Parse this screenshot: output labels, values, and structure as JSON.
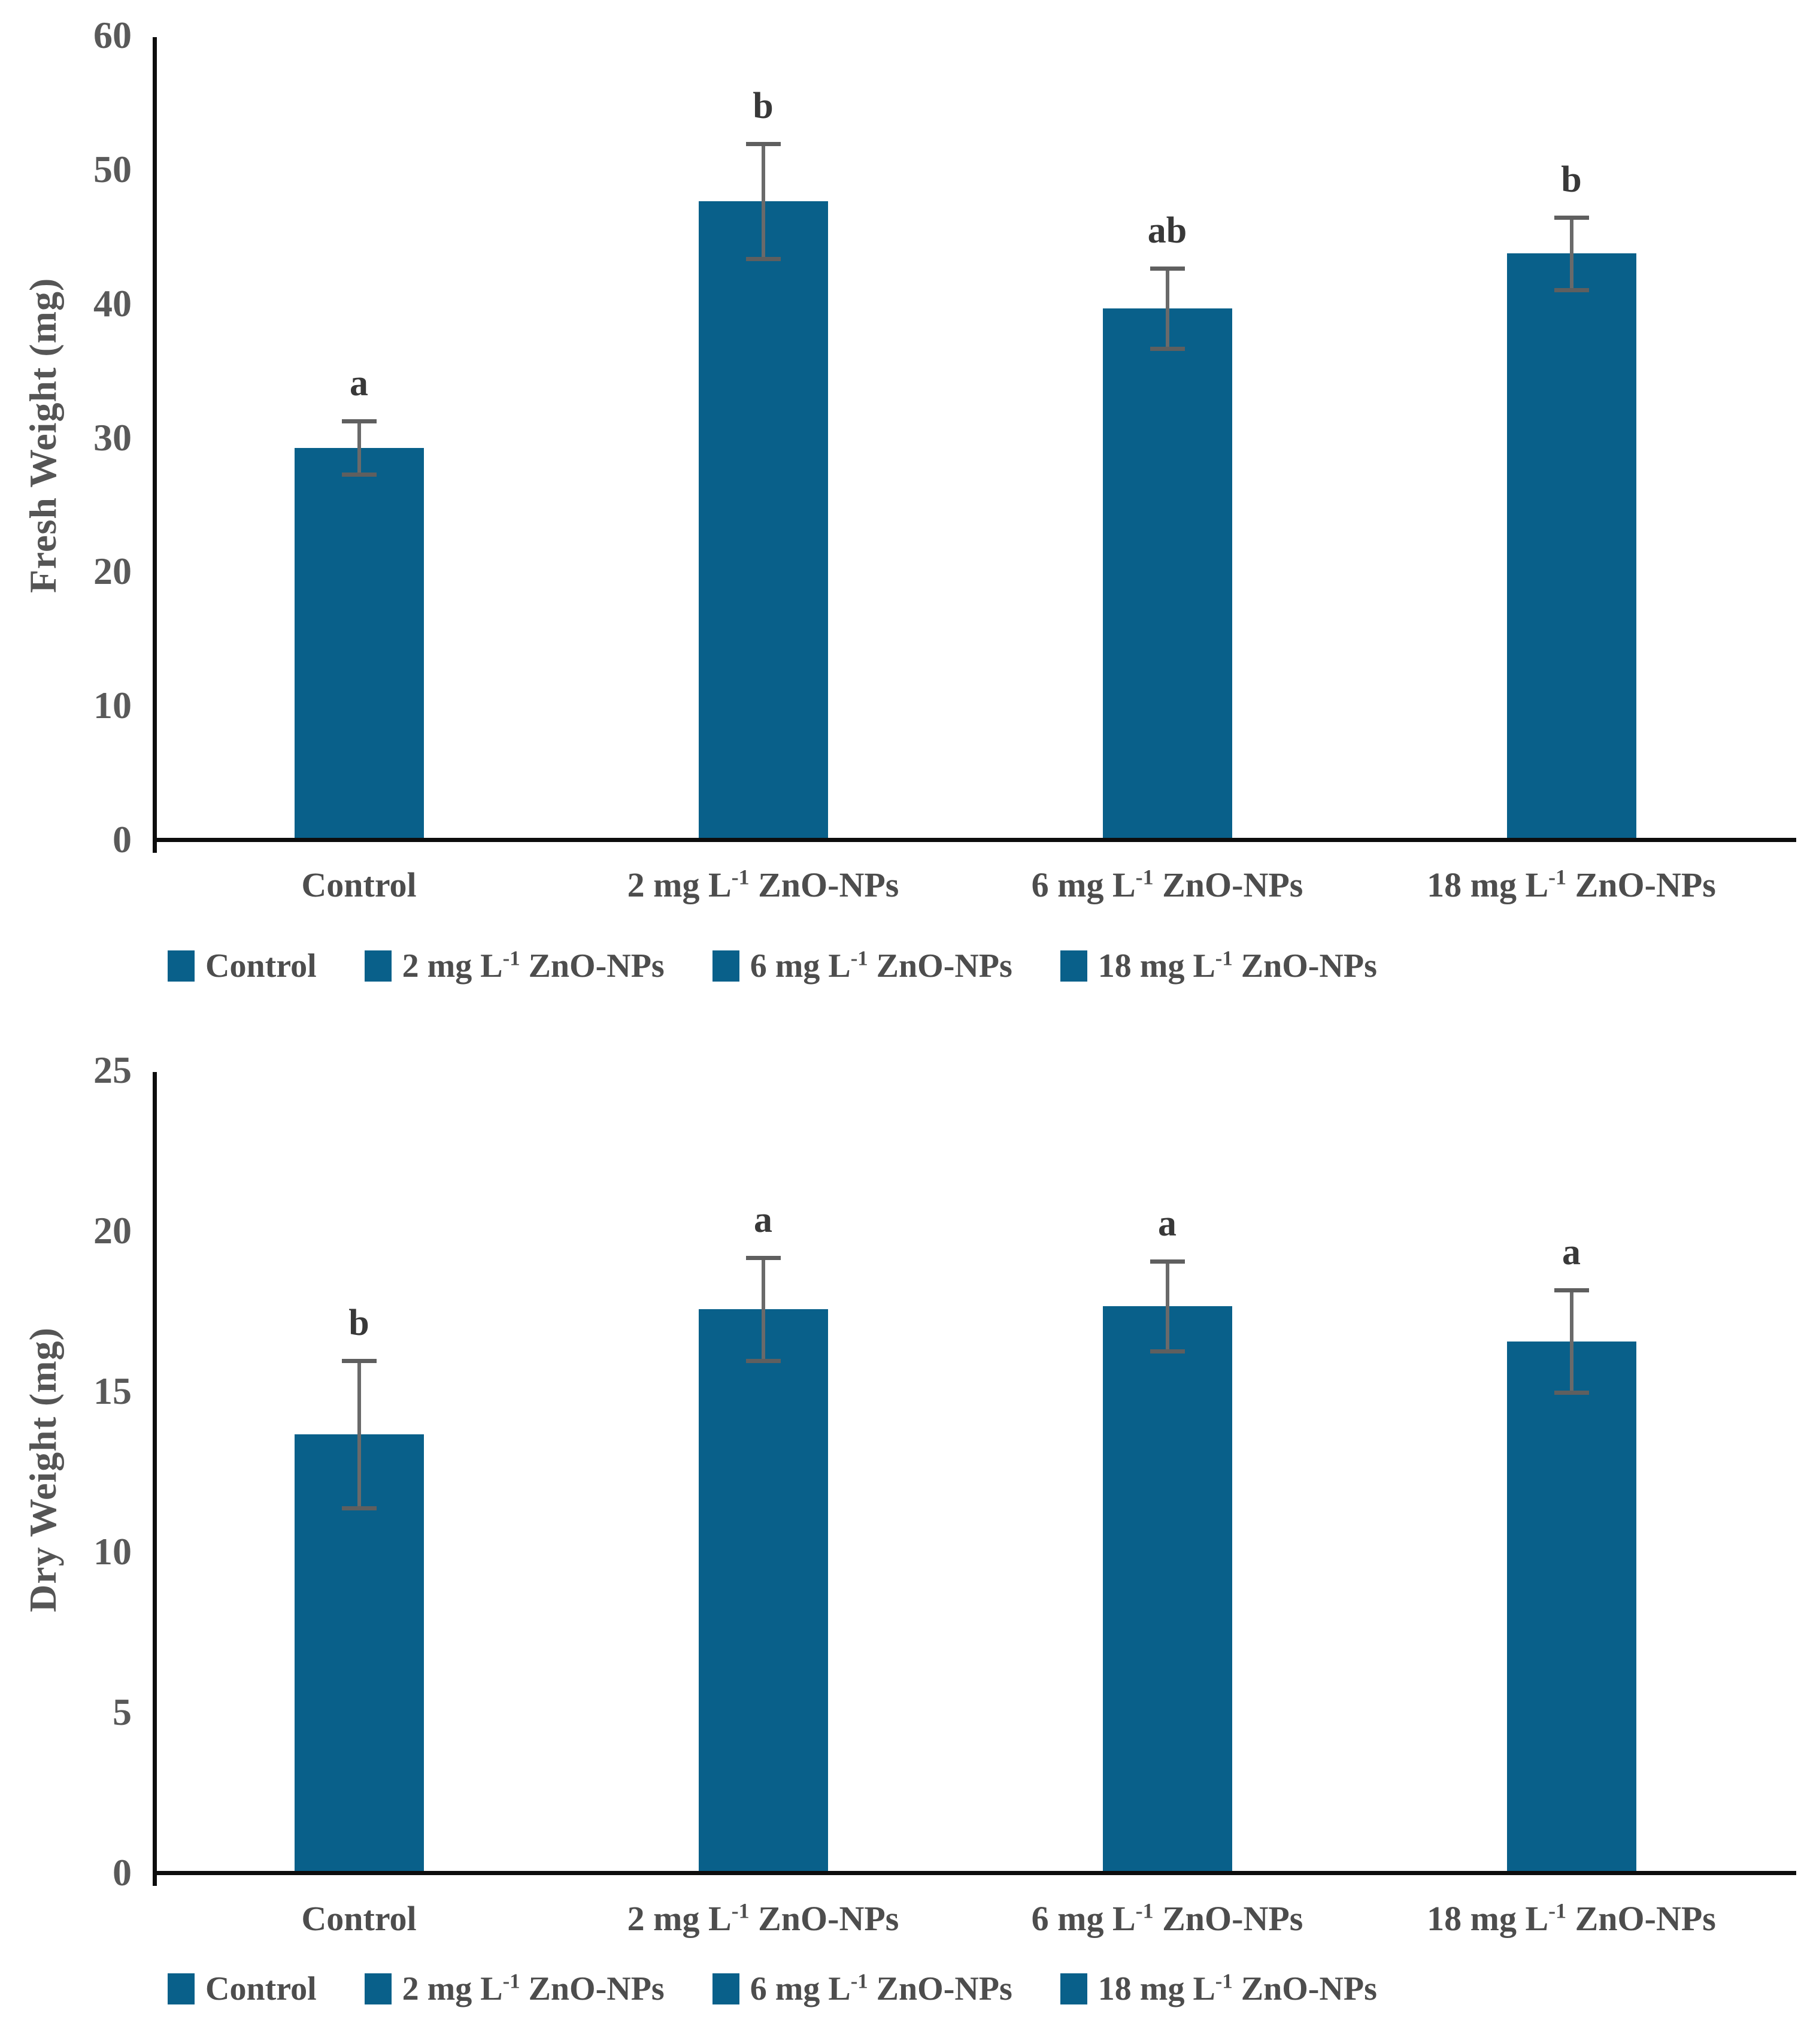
{
  "colors": {
    "bar": "#09608a",
    "error_bar": "#6a6a6a",
    "tick_text": "#595959",
    "label_text": "#4d4d4d",
    "letter_text": "#383838",
    "axis_line": "#0d0d0d"
  },
  "chart_data": [
    {
      "type": "bar",
      "title": "",
      "xlabel": "",
      "ylabel": "Fresh Weight (mg)",
      "ylim": [
        0,
        60
      ],
      "yticks": [
        0,
        10,
        20,
        30,
        40,
        50,
        60
      ],
      "grid": false,
      "categories": [
        "Control",
        "2 mg L⁻¹ ZnO-NPs",
        "6 mg L⁻¹ ZnO-NPs",
        "18 mg L⁻¹ ZnO-NPs"
      ],
      "values": [
        29.1,
        47.5,
        39.5,
        43.6
      ],
      "error_bars": [
        2.0,
        4.3,
        3.0,
        2.7
      ],
      "annotations": [
        "a",
        "b",
        "ab",
        "b"
      ],
      "legend_entries": [
        "Control",
        "2 mg L⁻¹ ZnO-NPs",
        "6 mg L⁻¹ ZnO-NPs",
        "18 mg L⁻¹ ZnO-NPs"
      ],
      "legend_position": "bottom",
      "bar_color": "#09608a"
    },
    {
      "type": "bar",
      "title": "",
      "xlabel": "",
      "ylabel": "Dry Weight (mg)",
      "ylim": [
        0,
        25
      ],
      "yticks": [
        0,
        5,
        10,
        15,
        20,
        25
      ],
      "grid": false,
      "categories": [
        "Control",
        "2 mg L⁻¹ ZnO-NPs",
        "6 mg L⁻¹ ZnO-NPs",
        "18 mg L⁻¹ ZnO-NPs"
      ],
      "values": [
        13.6,
        17.5,
        17.6,
        16.5
      ],
      "error_bars": [
        2.3,
        1.6,
        1.4,
        1.6
      ],
      "annotations": [
        "b",
        "a",
        "a",
        "a"
      ],
      "legend_entries": [
        "Control",
        "2 mg L⁻¹ ZnO-NPs",
        "6 mg L⁻¹ ZnO-NPs",
        "18 mg L⁻¹ ZnO-NPs"
      ],
      "legend_position": "bottom",
      "bar_color": "#09608a"
    }
  ]
}
